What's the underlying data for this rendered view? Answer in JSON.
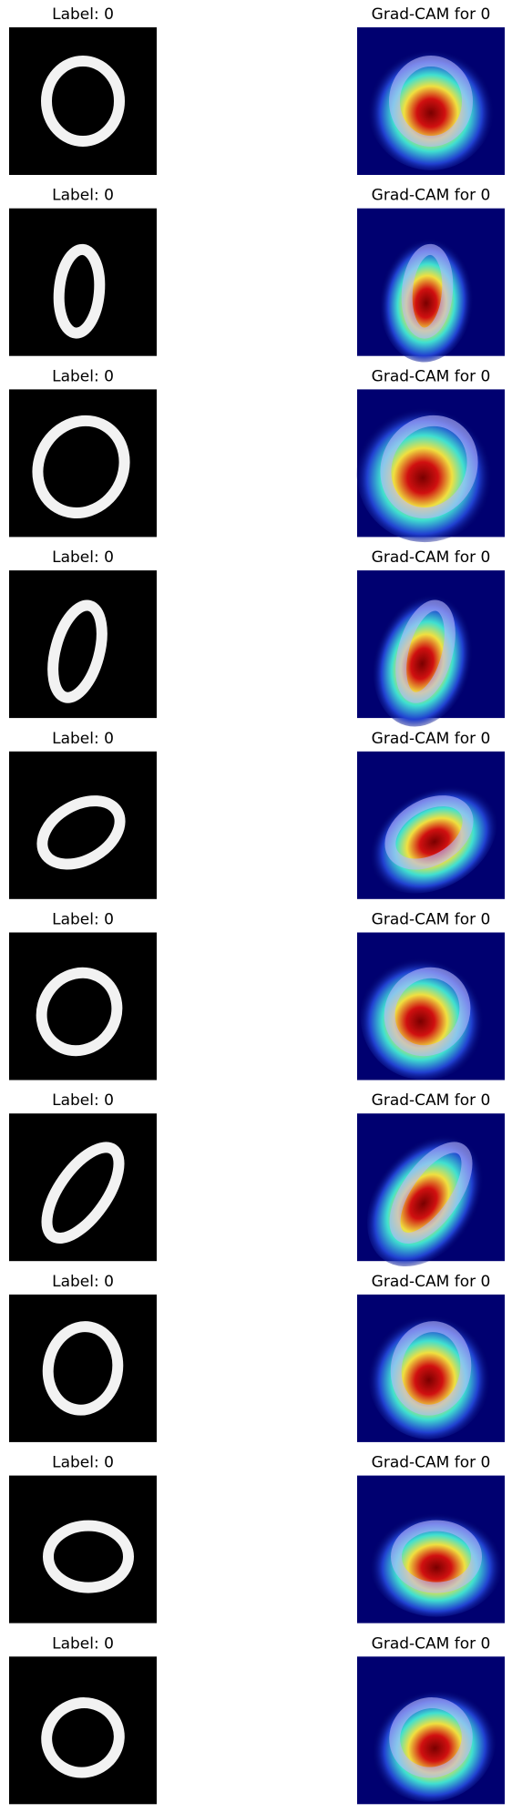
{
  "rows": [
    {
      "left_title": "Label: 0",
      "right_title": "Grad-CAM for 0"
    },
    {
      "left_title": "Label: 0",
      "right_title": "Grad-CAM for 0"
    },
    {
      "left_title": "Label: 0",
      "right_title": "Grad-CAM for 0"
    },
    {
      "left_title": "Label: 0",
      "right_title": "Grad-CAM for 0"
    },
    {
      "left_title": "Label: 0",
      "right_title": "Grad-CAM for 0"
    },
    {
      "left_title": "Label: 0",
      "right_title": "Grad-CAM for 0"
    },
    {
      "left_title": "Label: 0",
      "right_title": "Grad-CAM for 0"
    },
    {
      "left_title": "Label: 0",
      "right_title": "Grad-CAM for 0"
    },
    {
      "left_title": "Label: 0",
      "right_title": "Grad-CAM for 0"
    },
    {
      "left_title": "Label: 0",
      "right_title": "Grad-CAM for 0"
    }
  ]
}
